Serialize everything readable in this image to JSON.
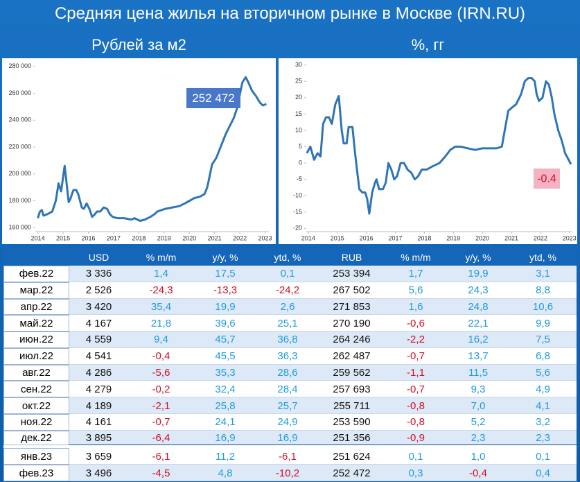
{
  "title": "Средняя цена жилья на вторичном рынке в Москве (IRN.RU)",
  "chart_data": [
    {
      "type": "line",
      "title": "Рублей за м2",
      "color": "#2e75b6",
      "annotation": "252 472",
      "xlim": [
        2013.9,
        2023.15
      ],
      "xticks": [
        2014,
        2015,
        2016,
        2017,
        2018,
        2019,
        2020,
        2021,
        2022,
        2023
      ],
      "ylim": [
        157000,
        283000
      ],
      "yticks": [
        {
          "value": 160000,
          "label": "160 000"
        },
        {
          "value": 180000,
          "label": "180 000"
        },
        {
          "value": 200000,
          "label": "200 000"
        },
        {
          "value": 220000,
          "label": "220 000"
        },
        {
          "value": 240000,
          "label": "240 000"
        },
        {
          "value": 260000,
          "label": "260 000"
        },
        {
          "value": 280000,
          "label": "280 000"
        }
      ],
      "x": [
        2014.0,
        2014.08,
        2014.16,
        2014.22,
        2014.38,
        2014.57,
        2014.71,
        2014.82,
        2014.92,
        2015.06,
        2015.22,
        2015.28,
        2015.41,
        2015.52,
        2015.6,
        2015.74,
        2015.82,
        2015.93,
        2016.04,
        2016.15,
        2016.26,
        2016.34,
        2016.47,
        2016.61,
        2016.74,
        2016.85,
        2016.96,
        2017.15,
        2017.42,
        2017.7,
        2017.83,
        2018.05,
        2018.24,
        2018.46,
        2018.62,
        2018.73,
        2019.05,
        2019.33,
        2019.6,
        2019.82,
        2020.01,
        2020.2,
        2020.41,
        2020.6,
        2020.71,
        2020.79,
        2020.9,
        2021.07,
        2021.28,
        2021.45,
        2021.61,
        2021.77,
        2021.91,
        2021.99,
        2022.1,
        2022.23,
        2022.34,
        2022.48,
        2022.64,
        2022.8,
        2022.91,
        2023.05
      ],
      "values": [
        167000,
        172000,
        173000,
        169000,
        170000,
        172000,
        180000,
        193000,
        187000,
        206000,
        179000,
        181000,
        188000,
        188000,
        185000,
        175000,
        174000,
        178000,
        174000,
        168000,
        170000,
        172000,
        172000,
        175000,
        174000,
        170000,
        168000,
        167000,
        167000,
        166000,
        167000,
        165000,
        166000,
        168000,
        170000,
        172000,
        174000,
        175000,
        176000,
        178000,
        180000,
        182000,
        183000,
        185000,
        190000,
        197000,
        207000,
        212000,
        222000,
        230000,
        236000,
        242000,
        250000,
        258000,
        268000,
        272000,
        268000,
        262000,
        258000,
        253000,
        251000,
        252000
      ]
    },
    {
      "type": "line",
      "title": "%, гг",
      "color": "#2e75b6",
      "annotation": "-0.4",
      "xlim": [
        2013.93,
        2023.1
      ],
      "xticks": [
        2014,
        2015,
        2016,
        2017,
        2018,
        2019,
        2020,
        2021,
        2022,
        2023
      ],
      "ylim": [
        -21,
        31
      ],
      "yticks": [
        -20,
        -15,
        -10,
        -5,
        0,
        5,
        10,
        15,
        20,
        25,
        30
      ],
      "x": [
        2013.95,
        2014.07,
        2014.2,
        2014.32,
        2014.42,
        2014.51,
        2014.61,
        2014.71,
        2014.81,
        2014.93,
        2015.05,
        2015.15,
        2015.22,
        2015.32,
        2015.39,
        2015.52,
        2015.61,
        2015.69,
        2015.76,
        2015.86,
        2015.96,
        2016.03,
        2016.1,
        2016.2,
        2016.3,
        2016.35,
        2016.44,
        2016.57,
        2016.67,
        2016.76,
        2016.86,
        2016.96,
        2017.06,
        2017.18,
        2017.3,
        2017.42,
        2017.55,
        2017.67,
        2017.79,
        2017.91,
        2018.08,
        2018.28,
        2018.52,
        2018.72,
        2018.89,
        2019.06,
        2019.26,
        2019.5,
        2019.75,
        2019.99,
        2020.23,
        2020.48,
        2020.67,
        2020.77,
        2020.89,
        2021.02,
        2021.16,
        2021.33,
        2021.46,
        2021.58,
        2021.7,
        2021.8,
        2021.87,
        2021.95,
        2022.07,
        2022.19,
        2022.29,
        2022.39,
        2022.48,
        2022.61,
        2022.73,
        2022.85,
        2022.97,
        2023.05
      ],
      "values": [
        3,
        5,
        1,
        3,
        2,
        12,
        14,
        14,
        12,
        18,
        20.5,
        10,
        6,
        6,
        11,
        11,
        3,
        -3,
        -8,
        -9,
        -9,
        -11,
        -15.5,
        -9,
        -6,
        -5,
        -8,
        -8,
        -6,
        0,
        -2,
        -5,
        -4,
        0,
        0,
        -2,
        -3,
        -5,
        -4,
        -2,
        -2,
        -1,
        0,
        2,
        4,
        5,
        5,
        4.5,
        4,
        4.5,
        4.5,
        4.5,
        5,
        10,
        16,
        17,
        18,
        21,
        25,
        26,
        26,
        25,
        21,
        19,
        20,
        25,
        24,
        20,
        15,
        10,
        7,
        3,
        1,
        -0.4
      ]
    }
  ],
  "table": {
    "header": [
      "USD",
      "% m/m",
      "y/y, %",
      "ytd, %",
      "RUB",
      "% m/m",
      "y/y, %",
      "ytd, %"
    ],
    "rows": [
      [
        "фев.22",
        "3 336",
        "1,4",
        "17,5",
        "0,1",
        "253 394",
        "1,7",
        "19,9",
        "3,1"
      ],
      [
        "мар.22",
        "2 526",
        "-24,3",
        "-13,3",
        "-24,2",
        "267 502",
        "5,6",
        "24,3",
        "8,8"
      ],
      [
        "апр.22",
        "3 420",
        "35,4",
        "19,9",
        "2,6",
        "271 853",
        "1,6",
        "24,8",
        "10,6"
      ],
      [
        "май.22",
        "4 167",
        "21,8",
        "39,6",
        "25,1",
        "270 190",
        "-0,6",
        "22,1",
        "9,9"
      ],
      [
        "июн.22",
        "4 559",
        "9,4",
        "45,7",
        "36,8",
        "264 246",
        "-2,2",
        "16,2",
        "7,5"
      ],
      [
        "июл.22",
        "4 541",
        "-0,4",
        "45,5",
        "36,3",
        "262 487",
        "-0,7",
        "13,7",
        "6,8"
      ],
      [
        "авг.22",
        "4 286",
        "-5,6",
        "35,3",
        "28,6",
        "259 562",
        "-1,1",
        "11,5",
        "5,6"
      ],
      [
        "сен.22",
        "4 279",
        "-0,2",
        "32,4",
        "28,4",
        "257 693",
        "-0,7",
        "9,3",
        "4,9"
      ],
      [
        "окт.22",
        "4 189",
        "-2,1",
        "25,8",
        "25,7",
        "255 711",
        "-0,8",
        "7,0",
        "4,1"
      ],
      [
        "ноя.22",
        "4 161",
        "-0,7",
        "24,1",
        "24,9",
        "253 590",
        "-0,8",
        "5,2",
        "3,2"
      ],
      [
        "дек.22",
        "3 895",
        "-6,4",
        "16,9",
        "16,9",
        "251 356",
        "-0,9",
        "2,3",
        "2,3"
      ],
      [
        "янв.23",
        "3 659",
        "-6,1",
        "11,2",
        "-6,1",
        "251 624",
        "0,1",
        "1,0",
        "0,1"
      ],
      [
        "фев.23",
        "3 496",
        "-4,5",
        "4,8",
        "-10,2",
        "252 472",
        "0,3",
        "-0,4",
        "0,4"
      ]
    ]
  }
}
